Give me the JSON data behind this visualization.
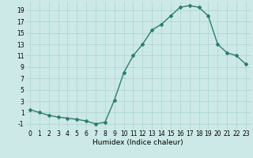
{
  "x": [
    0,
    1,
    2,
    3,
    4,
    5,
    6,
    7,
    8,
    9,
    10,
    11,
    12,
    13,
    14,
    15,
    16,
    17,
    18,
    19,
    20,
    21,
    22,
    23
  ],
  "y": [
    1.5,
    1.0,
    0.5,
    0.2,
    0.0,
    -0.2,
    -0.5,
    -1.0,
    -0.7,
    3.2,
    8.0,
    11.0,
    13.0,
    15.5,
    16.5,
    18.0,
    19.5,
    19.8,
    19.5,
    18.0,
    13.0,
    11.5,
    11.0,
    9.5
  ],
  "line_color": "#2e7d6e",
  "marker": "D",
  "marker_size": 2.0,
  "bg_color": "#cce9e7",
  "grid_color": "#aad4d0",
  "xlabel": "Humidex (Indice chaleur)",
  "xlim": [
    -0.5,
    23.5
  ],
  "ylim": [
    -2,
    20.5
  ],
  "yticks": [
    -1,
    1,
    3,
    5,
    7,
    9,
    11,
    13,
    15,
    17,
    19
  ],
  "xticks": [
    0,
    1,
    2,
    3,
    4,
    5,
    6,
    7,
    8,
    9,
    10,
    11,
    12,
    13,
    14,
    15,
    16,
    17,
    18,
    19,
    20,
    21,
    22,
    23
  ],
  "xlabel_fontsize": 6.5,
  "tick_fontsize": 5.5,
  "line_width": 1.0
}
